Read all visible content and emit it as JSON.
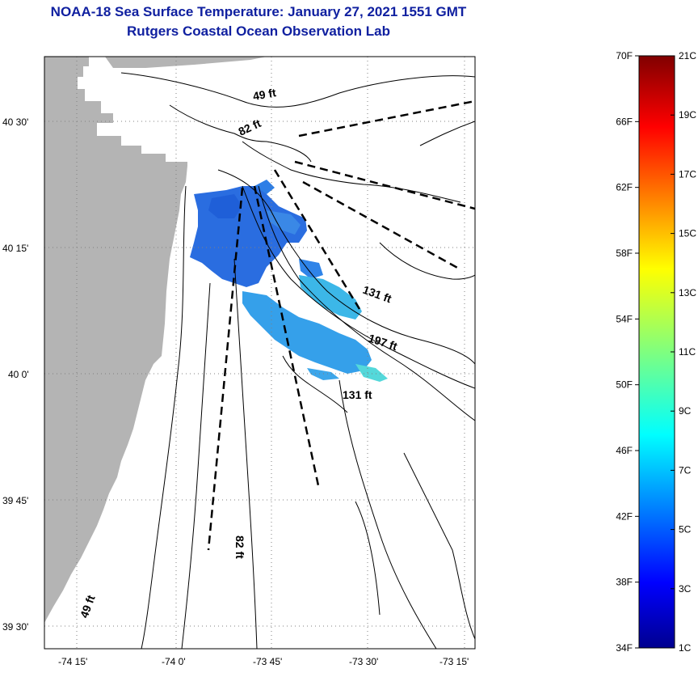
{
  "header": {
    "title": "NOAA-18 Sea Surface Temperature:  January 27, 2021 1551 GMT",
    "subtitle": "Rutgers Coastal Ocean Observation Lab"
  },
  "map": {
    "lat_ticks": [
      {
        "value": 40.5,
        "label": "40 30'"
      },
      {
        "value": 40.25,
        "label": "40 15'"
      },
      {
        "value": 40.0,
        "label": "40 0'"
      },
      {
        "value": 39.75,
        "label": "39 45'"
      },
      {
        "value": 39.5,
        "label": "39 30'"
      }
    ],
    "lon_ticks": [
      {
        "value": -74.25,
        "label": "-74 15'"
      },
      {
        "value": -74.0,
        "label": "-74 0'"
      },
      {
        "value": -73.75,
        "label": "-73 45'"
      },
      {
        "value": -73.5,
        "label": "-73 30'"
      },
      {
        "value": -73.25,
        "label": "-73 15'"
      }
    ],
    "depth_labels": [
      "49 ft",
      "82 ft",
      "131 ft",
      "197 ft",
      "131 ft",
      "82 ft",
      "49 ft"
    ],
    "colors": {
      "land": "#b4b4b4",
      "grid": "#808080",
      "contour": "#000000"
    }
  },
  "colorbar": {
    "f_labels": [
      "70F",
      "66F",
      "62F",
      "58F",
      "54F",
      "50F",
      "46F",
      "42F",
      "38F",
      "34F"
    ],
    "c_labels": [
      "21C",
      "19C",
      "17C",
      "15C",
      "13C",
      "11C",
      "9C",
      "7C",
      "5C",
      "3C",
      "1C"
    ],
    "f_range": [
      34,
      70
    ],
    "c_range": [
      1,
      21
    ]
  }
}
